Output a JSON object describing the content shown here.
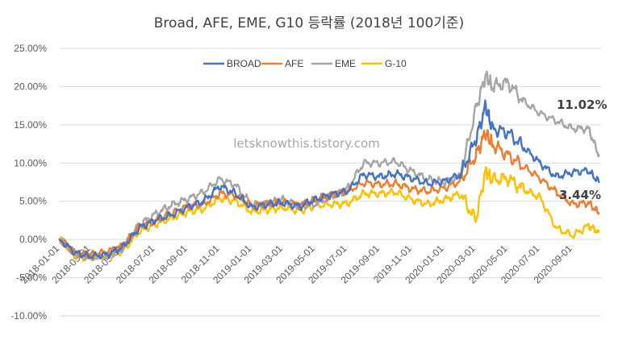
{
  "chart_data": {
    "type": "line",
    "title": "Broad, AFE, EME, G10 등락률 (2018년 100기준)",
    "watermark": "letsknowthis.tistory.com",
    "yunit": "%",
    "ylim": [
      -10,
      25
    ],
    "yticks": [
      25,
      20,
      15,
      10,
      5,
      0,
      -5,
      -10
    ],
    "ytick_labels": [
      "25.00%",
      "20.00%",
      "15.00%",
      "10.00%",
      "5.00%",
      "0.00%",
      "-5.00%",
      "-10.00%"
    ],
    "xlim": [
      "2018-01-01",
      "2020-10-25"
    ],
    "xticks": [
      "2018-01-01",
      "2018-03-01",
      "2018-05-01",
      "2018-07-01",
      "2018-09-01",
      "2018-11-01",
      "2019-01-01",
      "2019-03-01",
      "2019-05-01",
      "2019-07-01",
      "2019-09-01",
      "2019-11-01",
      "2020-01-01",
      "2020-03-01",
      "2020-05-01",
      "2020-07-01",
      "2020-09-01"
    ],
    "grid": true,
    "legend_position": "top-center",
    "x": [
      "2018-01-01",
      "2018-02-01",
      "2018-03-01",
      "2018-04-01",
      "2018-05-01",
      "2018-06-01",
      "2018-07-01",
      "2018-08-01",
      "2018-09-01",
      "2018-10-01",
      "2018-11-01",
      "2018-12-01",
      "2019-01-01",
      "2019-02-01",
      "2019-03-01",
      "2019-04-01",
      "2019-05-01",
      "2019-06-01",
      "2019-07-01",
      "2019-08-01",
      "2019-09-01",
      "2019-10-01",
      "2019-11-01",
      "2019-12-01",
      "2020-01-01",
      "2020-02-01",
      "2020-03-01",
      "2020-03-20",
      "2020-04-01",
      "2020-05-01",
      "2020-06-01",
      "2020-07-01",
      "2020-08-01",
      "2020-09-01",
      "2020-10-01",
      "2020-10-21"
    ],
    "series": [
      {
        "name": "BROAD",
        "color": "#4472c4",
        "values": [
          0,
          -1.8,
          -2.2,
          -2.0,
          -1.0,
          1.5,
          2.5,
          3.2,
          4.2,
          5.0,
          7.0,
          6.0,
          4.2,
          4.6,
          4.8,
          4.3,
          5.2,
          5.9,
          6.3,
          8.5,
          8.2,
          8.6,
          8.0,
          7.3,
          7.6,
          8.5,
          13.0,
          17.5,
          14.5,
          14.0,
          12.0,
          10.0,
          8.2,
          8.8,
          9.0,
          7.5
        ]
      },
      {
        "name": "AFE",
        "color": "#ed7d31",
        "values": [
          0,
          -1.8,
          -2.0,
          -1.6,
          -0.8,
          1.7,
          2.4,
          3.4,
          4.4,
          4.6,
          6.0,
          5.8,
          4.4,
          4.7,
          4.9,
          4.5,
          5.2,
          5.8,
          6.3,
          7.4,
          7.2,
          7.3,
          6.6,
          6.3,
          6.7,
          7.6,
          11.0,
          14.0,
          12.5,
          11.0,
          9.5,
          8.0,
          6.2,
          4.6,
          4.8,
          3.44
        ]
      },
      {
        "name": "EME",
        "color": "#a5a5a5",
        "values": [
          0,
          -1.9,
          -2.4,
          -2.1,
          -1.2,
          1.9,
          3.3,
          4.5,
          5.3,
          6.2,
          7.9,
          7.1,
          4.5,
          4.8,
          5.2,
          4.4,
          4.6,
          5.7,
          6.6,
          10.0,
          10.0,
          10.2,
          8.9,
          7.9,
          7.5,
          8.3,
          17.0,
          21.5,
          20.0,
          20.5,
          18.0,
          16.5,
          15.5,
          14.5,
          14.5,
          11.02
        ]
      },
      {
        "name": "G-10",
        "color": "#ffc000",
        "values": [
          0,
          -2.2,
          -2.3,
          -2.2,
          -1.5,
          1.0,
          2.0,
          2.8,
          3.6,
          4.0,
          5.4,
          5.0,
          3.6,
          3.9,
          4.2,
          3.7,
          4.4,
          4.6,
          4.7,
          6.0,
          6.0,
          6.2,
          5.2,
          4.6,
          5.2,
          6.0,
          2.5,
          9.0,
          7.8,
          8.0,
          6.5,
          5.5,
          1.5,
          0.5,
          1.8,
          1.0
        ]
      }
    ],
    "annotations": [
      {
        "text": "11.02%",
        "series": "EME"
      },
      {
        "text": "3.44%",
        "series": "AFE"
      }
    ]
  }
}
